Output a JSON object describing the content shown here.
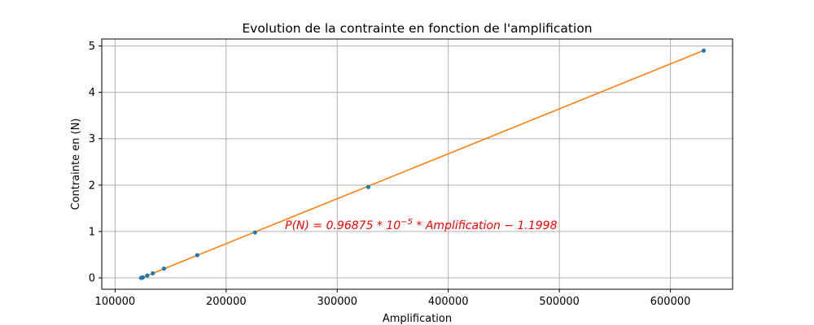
{
  "chart_data": {
    "type": "scatter",
    "title": "Evolution de la contrainte en fonction de l'amplification",
    "xlabel": "Amplification",
    "ylabel": "Contrainte en (N)",
    "xlim": [
      88000,
      656000
    ],
    "ylim": [
      -0.245,
      5.15
    ],
    "xticks": [
      100000,
      200000,
      300000,
      400000,
      500000,
      600000
    ],
    "yticks": [
      0,
      1,
      2,
      3,
      4,
      5
    ],
    "grid": true,
    "series": [
      {
        "kind": "points",
        "color": "#1f77b4",
        "points": [
          {
            "x": 123500,
            "y": 0.0
          },
          {
            "x": 124000,
            "y": 0.005
          },
          {
            "x": 125000,
            "y": 0.01
          },
          {
            "x": 129000,
            "y": 0.05
          },
          {
            "x": 134000,
            "y": 0.1
          },
          {
            "x": 144000,
            "y": 0.2
          },
          {
            "x": 174000,
            "y": 0.49
          },
          {
            "x": 226000,
            "y": 0.98
          },
          {
            "x": 328000,
            "y": 1.96
          },
          {
            "x": 630000,
            "y": 4.9
          }
        ]
      },
      {
        "kind": "line",
        "color": "#ff7f0e",
        "points": [
          {
            "x": 123500,
            "y": -0.0034
          },
          {
            "x": 630000,
            "y": 4.9034
          }
        ]
      }
    ],
    "annotation": {
      "text": "P(N) = 0.96875 * 10",
      "sup": "−5",
      "tail": " * Amplification − 1.1998",
      "x": 253000,
      "y": 1.02,
      "color": "#ff0000"
    }
  }
}
